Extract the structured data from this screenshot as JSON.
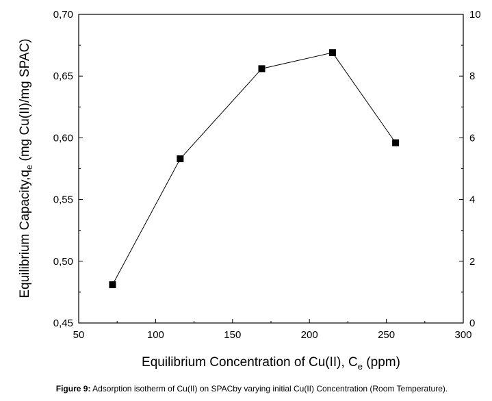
{
  "chart_data": {
    "type": "line",
    "xlabel_main": "Equilibrium Concentration of Cu(II), C",
    "xlabel_sub": "e",
    "xlabel_unit": " (ppm)",
    "ylabel_main": "Equilibrium Capacity,q",
    "ylabel_sub": "e",
    "ylabel_unit": " (mg Cu(II)/mg SPAC)",
    "xlim": [
      50,
      300
    ],
    "ylim": [
      0.45,
      0.7
    ],
    "y2lim": [
      0,
      10
    ],
    "x_ticks": [
      "50",
      "100",
      "150",
      "200",
      "250",
      "300"
    ],
    "y_ticks": [
      "0,45",
      "0,50",
      "0,55",
      "0,60",
      "0,65",
      "0,70"
    ],
    "y2_ticks": [
      "0",
      "2",
      "4",
      "6",
      "8",
      "10"
    ],
    "marker": "square",
    "series": [
      {
        "x": [
          72,
          116,
          169,
          215,
          256
        ],
        "y": [
          0.481,
          0.583,
          0.656,
          0.669,
          0.596
        ]
      }
    ],
    "grid": false,
    "line_color": "#000000",
    "marker_color": "#000000"
  },
  "caption": {
    "label": "Figure 9:",
    "text": " Adsorption isotherm of Cu(II) on SPACby varying initial Cu(II) Concentration (Room Temperature)."
  }
}
